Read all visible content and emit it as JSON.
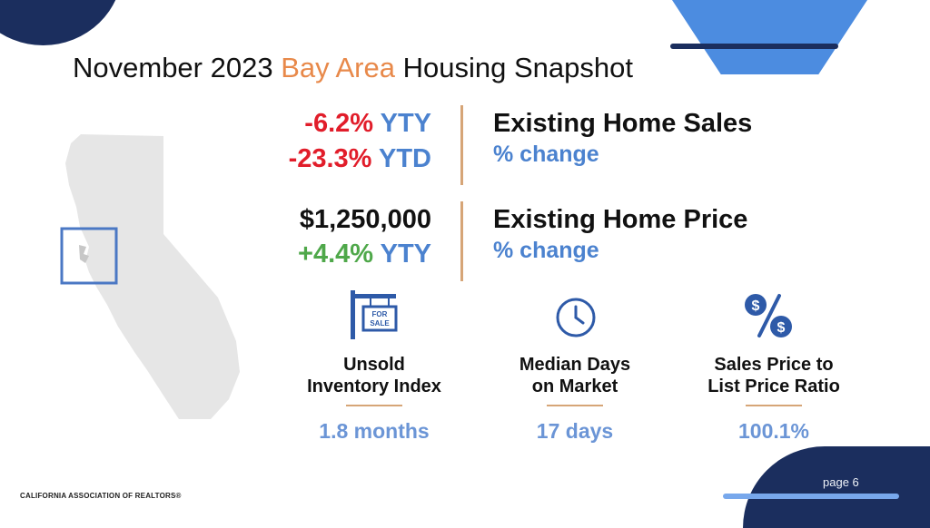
{
  "title": {
    "part1": "November 2023 ",
    "highlight": "Bay Area",
    "part2": " Housing Snapshot"
  },
  "sales": {
    "yty_value": "-6.2%",
    "yty_label": " YTY",
    "ytd_value": "-23.3%",
    "ytd_label": " YTD",
    "heading": "Existing Home Sales",
    "subheading": "% change"
  },
  "price": {
    "value": "$1,250,000",
    "yty_value": "+4.4%",
    "yty_label": " YTY",
    "heading": "Existing Home Price",
    "subheading": "% change"
  },
  "stats": [
    {
      "icon": "for-sale-sign-icon",
      "sign_text": [
        "FOR",
        "SALE"
      ],
      "line1": "Unsold",
      "line2": "Inventory Index",
      "value": "1.8 months"
    },
    {
      "icon": "clock-icon",
      "line1": "Median Days",
      "line2": "on Market",
      "value": "17 days"
    },
    {
      "icon": "dollar-percent-icon",
      "line1": "Sales Price to",
      "line2": "List Price Ratio",
      "value": "100.1%"
    }
  ],
  "page_label": "page 6",
  "footer": "CALIFORNIA ASSOCIATION OF REALTORS®",
  "colors": {
    "navy": "#1b2e5e",
    "blue": "#4b82cf",
    "orange": "#e8894a",
    "red": "#e11d2a",
    "green": "#4fa84a",
    "tan": "#d6a577"
  }
}
